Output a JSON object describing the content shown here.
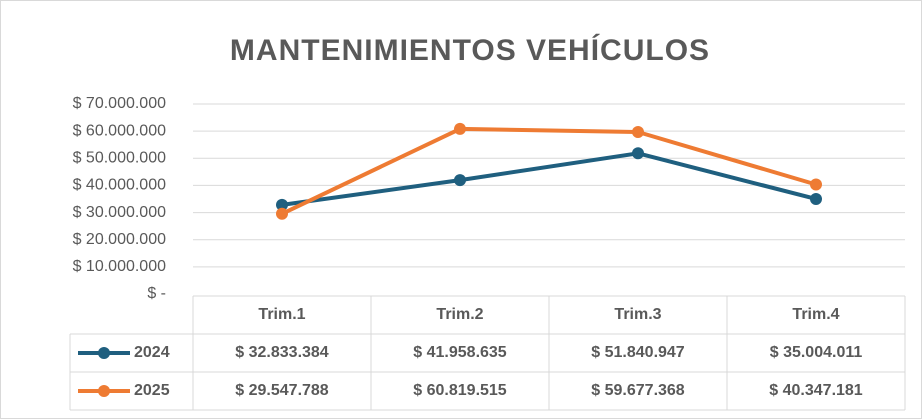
{
  "chart_data": {
    "type": "line",
    "title": "MANTENIMIENTOS VEHÍCULOS",
    "categories": [
      "Trim.1",
      "Trim.2",
      "Trim.3",
      "Trim.4"
    ],
    "series": [
      {
        "name": "2024",
        "color": "#1f5f7f",
        "values": [
          32833384,
          41958635,
          51840947,
          35004011
        ],
        "value_labels": [
          "$ 32.833.384",
          "$ 41.958.635",
          "$ 51.840.947",
          "$ 35.004.011"
        ]
      },
      {
        "name": "2025",
        "color": "#ee7b33",
        "values": [
          29547788,
          60819515,
          59677368,
          40347181
        ],
        "value_labels": [
          "$ 29.547.788",
          "$ 60.819.515",
          "$ 59.677.368",
          "$ 40.347.181"
        ]
      }
    ],
    "ylim": [
      0,
      70000000
    ],
    "yticks": [
      {
        "value": 0,
        "label": "$ -"
      },
      {
        "value": 10000000,
        "label": "$ 10.000.000"
      },
      {
        "value": 20000000,
        "label": "$ 20.000.000"
      },
      {
        "value": 30000000,
        "label": "$ 30.000.000"
      },
      {
        "value": 40000000,
        "label": "$ 40.000.000"
      },
      {
        "value": 50000000,
        "label": "$ 50.000.000"
      },
      {
        "value": 60000000,
        "label": "$ 60.000.000"
      },
      {
        "value": 70000000,
        "label": "$ 70.000.000"
      }
    ],
    "grid": true
  }
}
